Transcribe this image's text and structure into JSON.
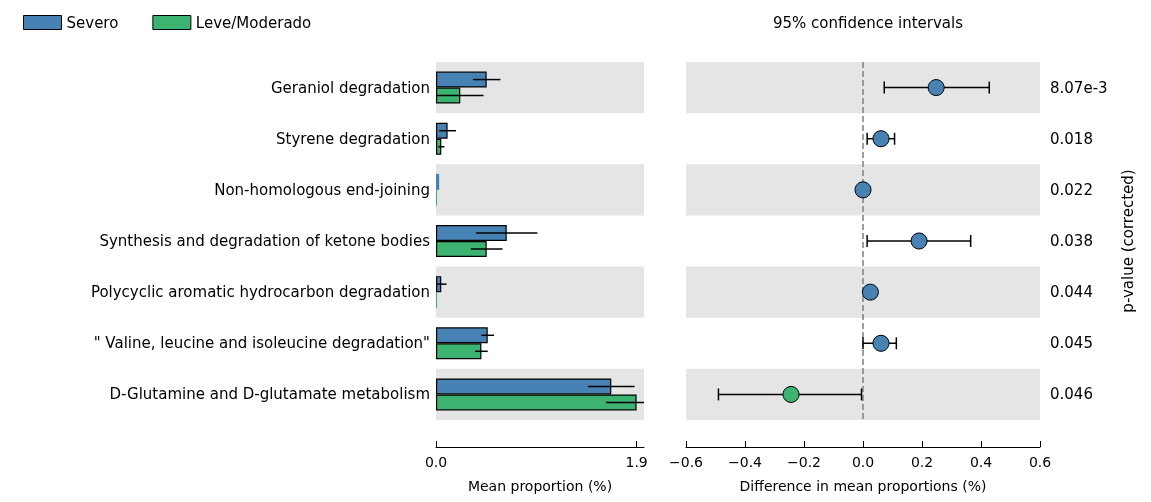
{
  "chart_data": [
    {
      "type": "bar",
      "orientation": "horizontal",
      "categories": [
        "Geraniol degradation",
        "Styrene degradation",
        "Non-homologous end-joining",
        "Synthesis and degradation of ketone bodies",
        "Polycyclic aromatic hydrocarbon degradation",
        "\" Valine, leucine and isoleucine degradation\"",
        "D-Glutamine and D-glutamate metabolism"
      ],
      "series": [
        {
          "name": "Severo",
          "color": "#4682b4",
          "values": [
            0.48,
            0.11,
            0.03,
            0.67,
            0.05,
            0.49,
            1.66
          ],
          "errors": [
            0.13,
            0.08,
            null,
            0.29,
            0.05,
            0.06,
            0.22
          ]
        },
        {
          "name": "Leve/Moderado",
          "color": "#3cb371",
          "values": [
            0.23,
            0.05,
            0.01,
            0.48,
            0.01,
            0.43,
            1.9
          ],
          "errors": [
            0.22,
            0.03,
            null,
            0.15,
            null,
            0.06,
            [
              1.61,
              1.97
            ]
          ]
        }
      ],
      "xlim": [
        0,
        1.97
      ],
      "xticks": [
        {
          "value": 0,
          "label": "0.0"
        },
        1.9
      ],
      "xlabel": "Mean proportion (%)",
      "legend": "top left",
      "grid": false,
      "bands": [
        {
          "axis": "y",
          "from": "Geraniol degradation",
          "to": "Geraniol degradation",
          "color": "#e5e5e5"
        },
        {
          "axis": "y",
          "from": "Non-homologous end-joining",
          "to": "Non-homologous end-joining",
          "color": "#e5e5e5"
        },
        {
          "axis": "y",
          "from": "Polycyclic aromatic hydrocarbon degradation",
          "to": "Polycyclic aromatic hydrocarbon degradation",
          "color": "#e5e5e5"
        },
        {
          "axis": "y",
          "from": "D-Glutamine and D-glutamate metabolism",
          "to": "D-Glutamine and D-glutamate metabolism",
          "color": "#e5e5e5"
        }
      ]
    },
    {
      "type": "scatter",
      "orientation": "horizontal",
      "title": "95% confidence intervals",
      "categories": [
        "8.07e-3",
        "0.018",
        "0.022",
        "0.038",
        "0.044",
        "0.045",
        "0.046"
      ],
      "ylabel": "p-value (corrected)",
      "values": [
        0.248,
        0.061,
        0.0,
        0.19,
        0.025,
        0.061,
        -0.244
      ],
      "colors": [
        "#4682b4",
        "#4682b4",
        "#4682b4",
        "#4682b4",
        "#4682b4",
        "#4682b4",
        "#3cb371"
      ],
      "errors": [
        [
          0.072,
          0.428
        ],
        [
          0.014,
          0.107
        ],
        null,
        [
          0.014,
          0.365
        ],
        null,
        [
          0.0,
          0.113
        ],
        [
          -0.49,
          -0.005
        ]
      ],
      "marker": "circle",
      "xlim": [
        -0.6,
        0.6
      ],
      "xticks": [
        {
          "value": -0.6,
          "label": "−0.6"
        },
        {
          "value": -0.4,
          "label": "−0.4"
        },
        {
          "value": -0.2,
          "label": "−0.2"
        },
        {
          "value": 0,
          "label": "0.0"
        },
        {
          "value": 0.2,
          "label": "0.2"
        },
        {
          "value": 0.4,
          "label": "0.4"
        },
        {
          "value": 0.6,
          "label": "0.6"
        }
      ],
      "xlabel": "Difference in mean proportions (%)",
      "grid": false,
      "ref_lines": [
        {
          "axis": "x",
          "value": 0,
          "color": "#808080",
          "line_style": "dashed"
        }
      ],
      "bands": [
        {
          "axis": "y",
          "from": "8.07e-3",
          "to": "8.07e-3",
          "color": "#e5e5e5"
        },
        {
          "axis": "y",
          "from": "0.022",
          "to": "0.022",
          "color": "#e5e5e5"
        },
        {
          "axis": "y",
          "from": "0.044",
          "to": "0.044",
          "color": "#e5e5e5"
        },
        {
          "axis": "y",
          "from": "0.046",
          "to": "0.046",
          "color": "#e5e5e5"
        }
      ]
    }
  ]
}
